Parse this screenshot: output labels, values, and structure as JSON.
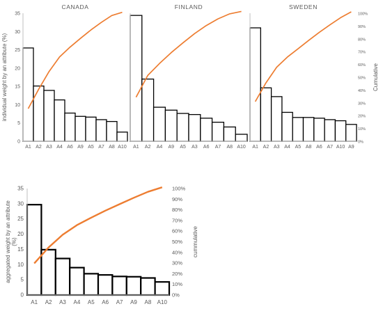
{
  "chart_data": [
    {
      "type": "bar",
      "title": "CANADA",
      "categories": [
        "A1",
        "A2",
        "A3",
        "A4",
        "A6",
        "A9",
        "A5",
        "A7",
        "A8",
        "A10"
      ],
      "values": [
        25.5,
        15.1,
        13.9,
        11.3,
        7.7,
        6.8,
        6.6,
        5.9,
        5.4,
        2.5
      ],
      "cumulative": [
        25.5,
        40.6,
        54.5,
        65.8,
        73.5,
        80.3,
        86.9,
        92.8,
        98.2,
        100.7
      ],
      "ylabel": "individual weight by an attribute (%)",
      "ylim": [
        0,
        35
      ],
      "yticks": [
        "0",
        "5",
        "10",
        "15",
        "20",
        "25",
        "30",
        "35"
      ],
      "y2ticks": [],
      "y2label": "",
      "grid": false
    },
    {
      "type": "bar",
      "title": "FINLAND",
      "categories": [
        "A1",
        "A2",
        "A4",
        "A9",
        "A5",
        "A3",
        "A6",
        "A7",
        "A8",
        "A10"
      ],
      "values": [
        34.4,
        17.0,
        9.3,
        8.5,
        7.6,
        7.3,
        6.3,
        5.2,
        3.9,
        1.9
      ],
      "cumulative": [
        34.4,
        51.4,
        60.7,
        69.2,
        76.8,
        84.1,
        90.4,
        95.6,
        99.5,
        101.4
      ],
      "ylabel": "",
      "ylim": [
        0,
        35
      ],
      "yticks": [],
      "y2ticks": [],
      "y2label": "",
      "grid": false
    },
    {
      "type": "bar",
      "title": "SWEDEN",
      "categories": [
        "A1",
        "A2",
        "A3",
        "A4",
        "A5",
        "A8",
        "A6",
        "A7",
        "A10",
        "A9"
      ],
      "values": [
        31.0,
        14.6,
        12.2,
        7.9,
        6.5,
        6.5,
        6.3,
        5.9,
        5.6,
        4.6
      ],
      "cumulative": [
        31.0,
        45.6,
        57.8,
        65.7,
        72.2,
        78.7,
        85.0,
        90.9,
        96.5,
        101.1
      ],
      "ylabel": "",
      "ylim": [
        0,
        35
      ],
      "yticks": [],
      "y2ticks": [
        "0%",
        "10%",
        "20%",
        "30%",
        "40%",
        "50%",
        "60%",
        "70%",
        "80%",
        "90%",
        "100%"
      ],
      "y2label": "Cumulative",
      "grid": false
    },
    {
      "type": "bar",
      "title": "",
      "categories": [
        "A1",
        "A2",
        "A3",
        "A4",
        "A5",
        "A6",
        "A7",
        "A9",
        "A8",
        "A10"
      ],
      "values": [
        29.7,
        14.9,
        12.0,
        9.0,
        7.0,
        6.6,
        6.1,
        6.0,
        5.6,
        4.3
      ],
      "cumulative": [
        29.7,
        44.6,
        56.6,
        65.6,
        72.6,
        79.2,
        85.3,
        91.3,
        96.9,
        101.2
      ],
      "ylabel": "aggregated weight by an attribute (%)",
      "ylim": [
        0,
        35
      ],
      "yticks": [
        "0",
        "5",
        "10",
        "15",
        "20",
        "25",
        "30",
        "35"
      ],
      "y2ticks": [
        "0%",
        "10%",
        "20%",
        "30%",
        "40%",
        "50%",
        "60%",
        "70%",
        "80%",
        "90%",
        "100%"
      ],
      "y2label": "cummulative",
      "grid": false
    }
  ],
  "colors": {
    "bar_fill": "#ffffff",
    "bar_stroke": "#000000",
    "cumulative_line": "#ed7d31",
    "axis": "#bfbfbf",
    "text": "#595959"
  }
}
